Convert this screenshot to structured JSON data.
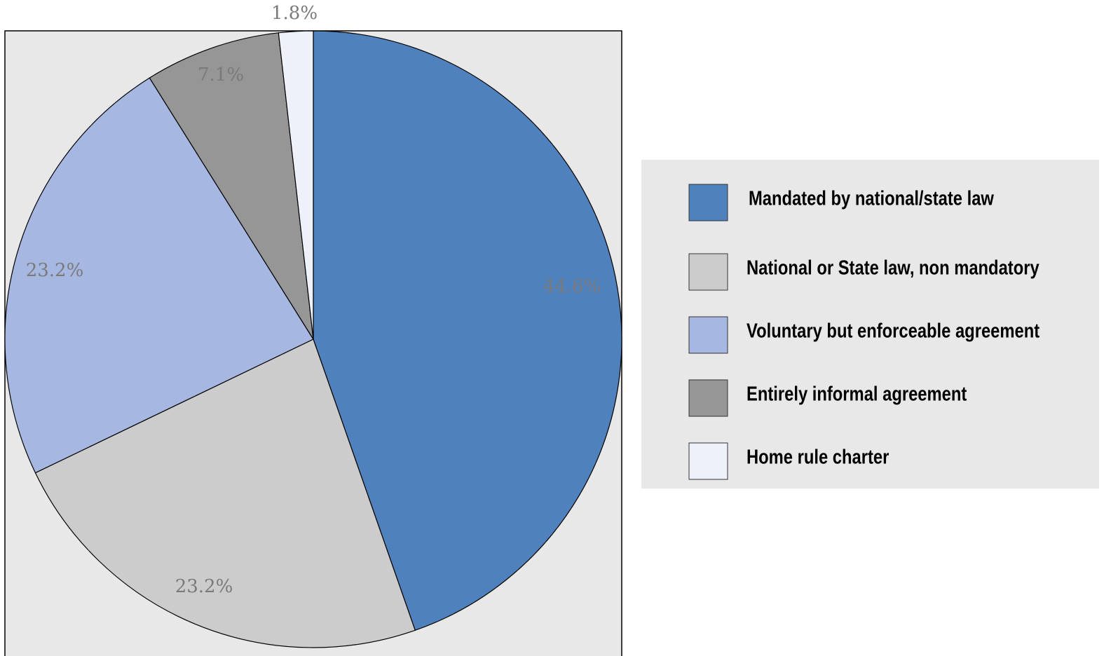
{
  "chart_data": {
    "type": "pie",
    "categories": [
      "Mandated by national/state law",
      "National or State law, non mandatory",
      "Voluntary but enforceable agreement",
      "Entirely informal agreement",
      "Home rule charter"
    ],
    "values": [
      44.6,
      23.2,
      23.2,
      7.1,
      1.8
    ],
    "value_labels": [
      "44.6%",
      "23.2%",
      "23.2%",
      "7.1%",
      "1.8%"
    ],
    "colors": [
      "#4f81bd",
      "#cccccc",
      "#a6b7e2",
      "#969696",
      "#eef1fa"
    ],
    "legend": "right"
  }
}
